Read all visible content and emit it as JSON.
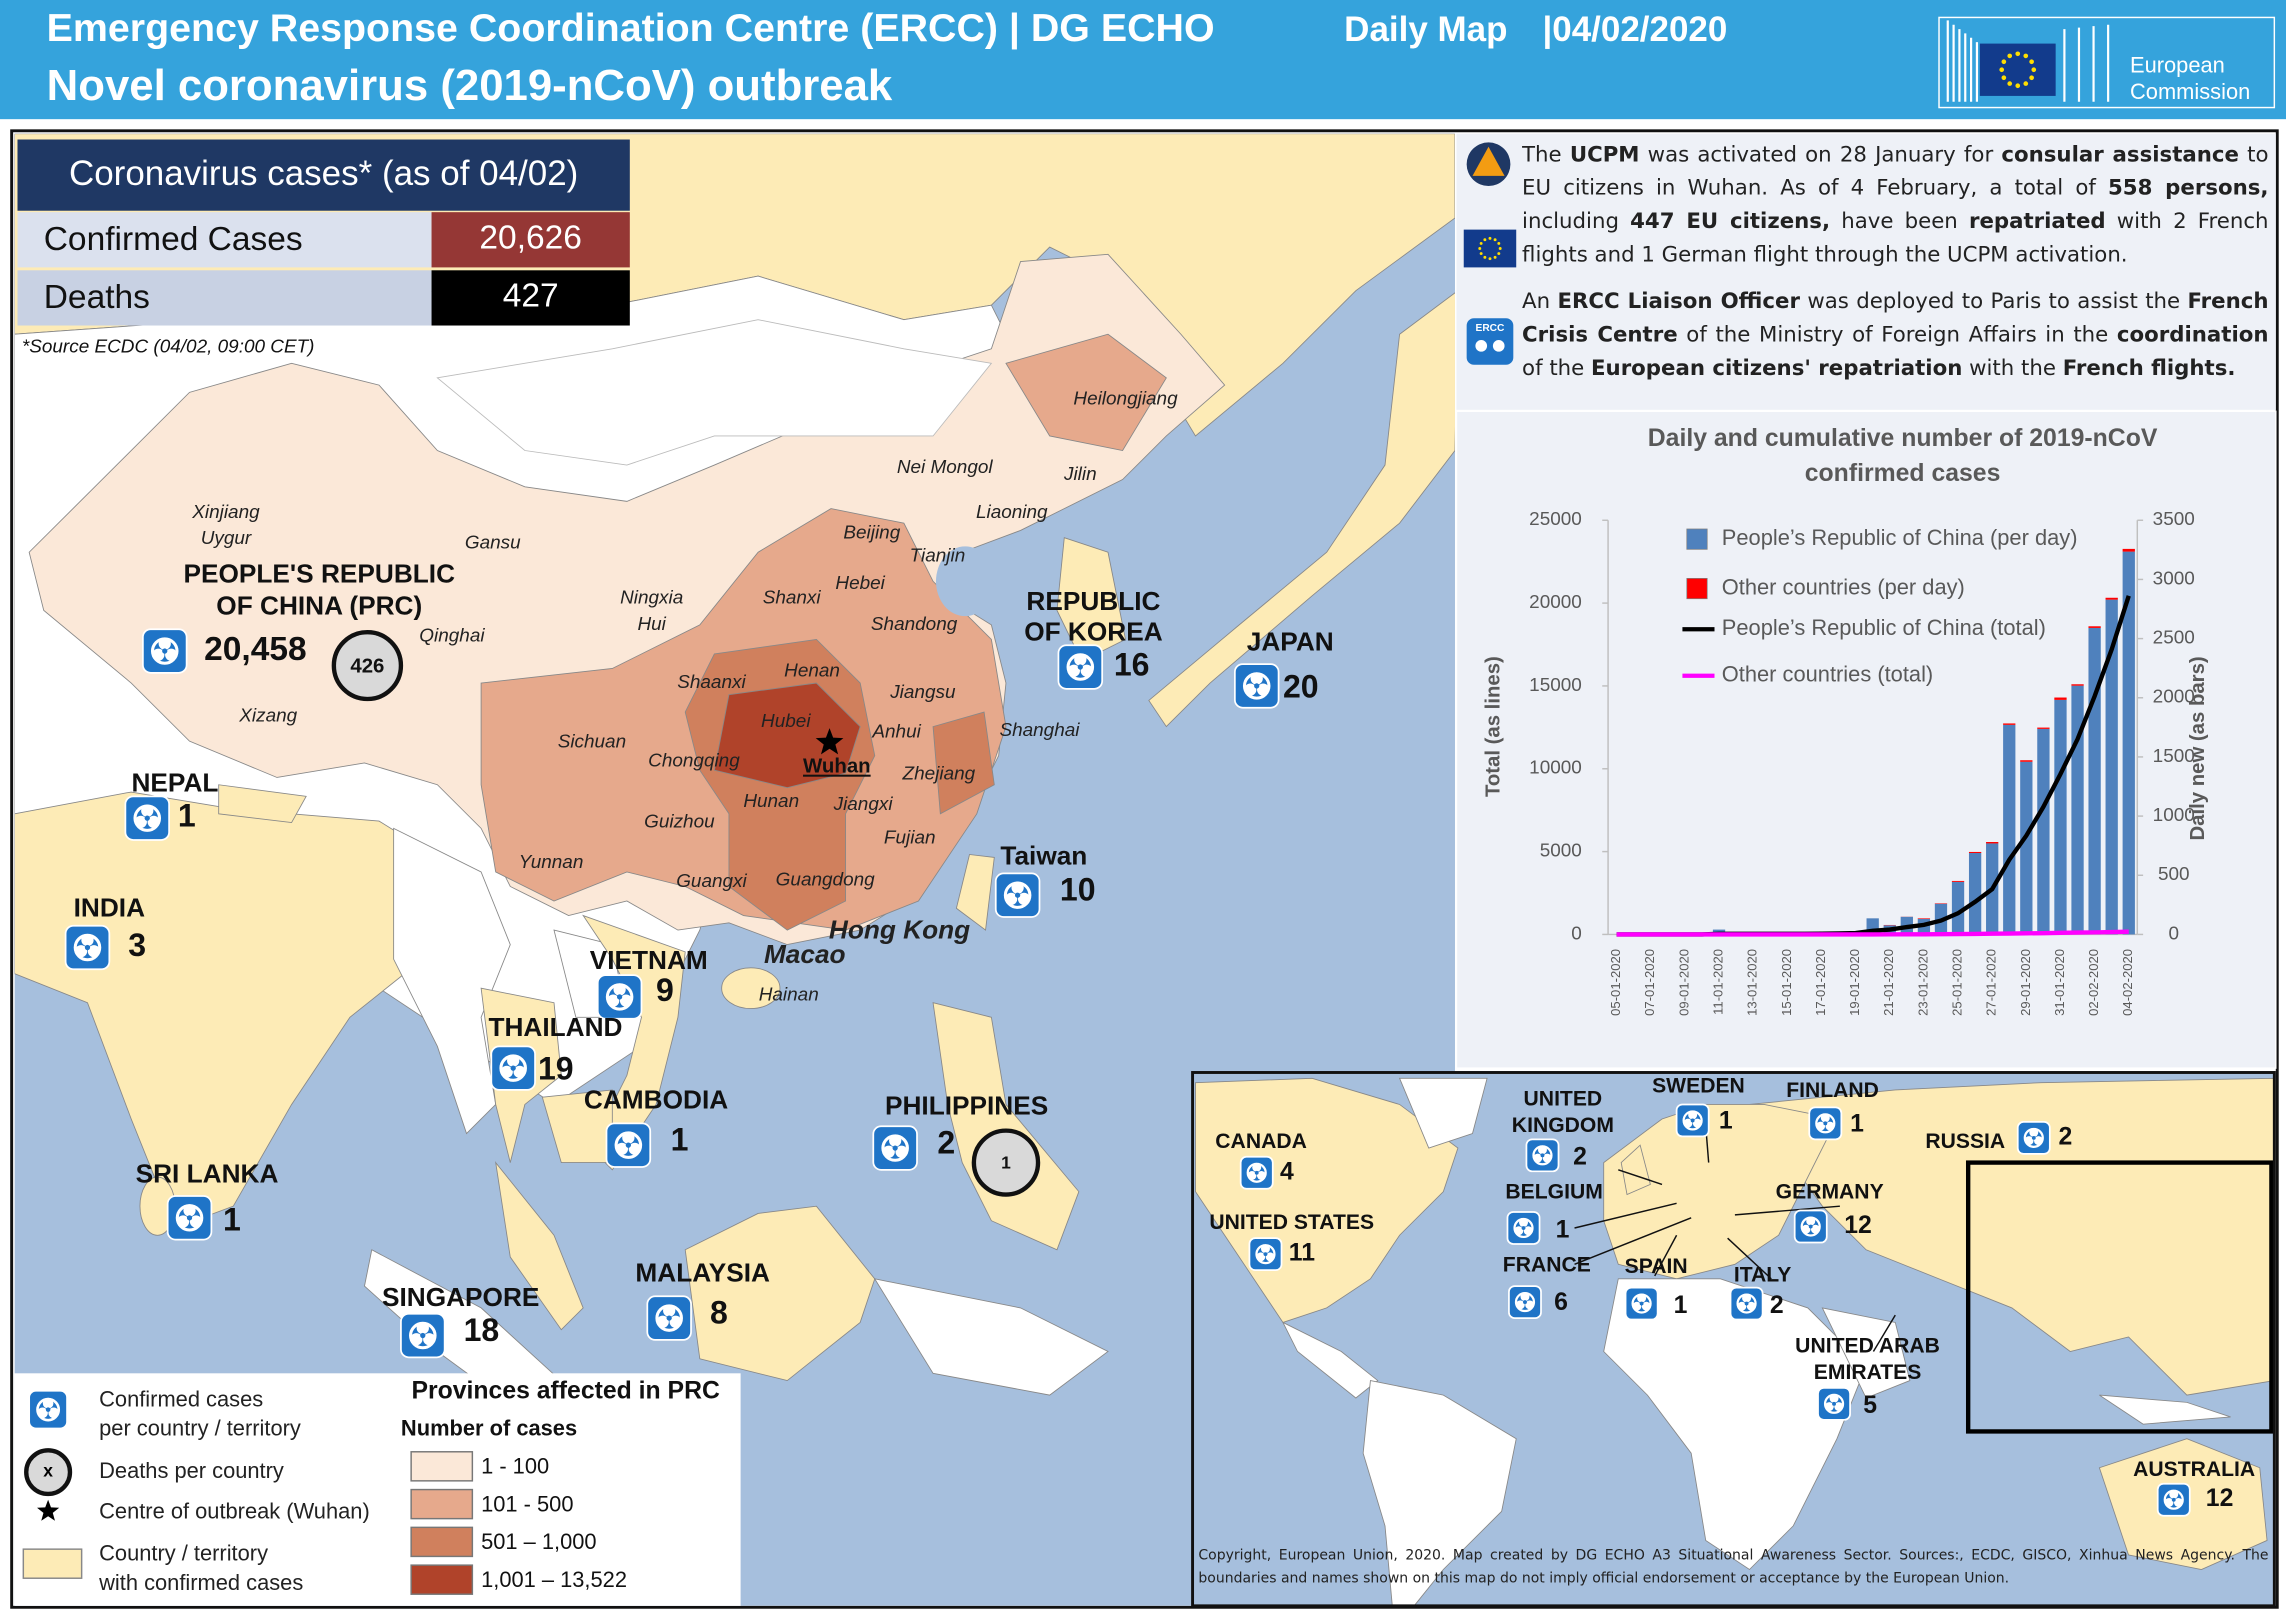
{
  "header": {
    "title": "Emergency Response Coordination Centre (ERCC) | DG ECHO",
    "map_type": "Daily Map",
    "date": "|04/02/2020",
    "subtitle": "Novel coronavirus (2019-nCoV) outbreak",
    "logo_text": [
      "European",
      "Commission"
    ]
  },
  "cases_table": {
    "title": "Coronavirus cases* (as of 04/02)",
    "rows": [
      [
        "Confirmed Cases",
        "20,626"
      ],
      [
        "Deaths",
        "427"
      ]
    ],
    "source": "*Source ECDC (04/02, 09:00 CET)"
  },
  "info": {
    "ercc_icon": "ERCC",
    "paragraphs": [
      [
        {
          "text": "The ",
          "bold": false
        },
        {
          "text": "UCPM",
          "bold": true
        },
        {
          "text": " was activated on 28 January for ",
          "bold": false
        },
        {
          "text": "consular assistance",
          "bold": true
        },
        {
          "text": " to EU citizens in Wuhan.  As of 4 February, a total of ",
          "bold": false
        },
        {
          "text": "558 persons,",
          "bold": true
        },
        {
          "text": " including ",
          "bold": false
        },
        {
          "text": "447 EU citizens,",
          "bold": true
        },
        {
          "text": " have been ",
          "bold": false
        },
        {
          "text": "repatriated",
          "bold": true
        },
        {
          "text": " with 2 French flights and 1 German flight through the UCPM activation.",
          "bold": false
        }
      ],
      [
        {
          "text": "An ",
          "bold": false
        },
        {
          "text": "ERCC Liaison Officer",
          "bold": true
        },
        {
          "text": " was deployed to Paris to assist the ",
          "bold": false
        },
        {
          "text": "French Crisis Centre",
          "bold": true
        },
        {
          "text": " of the Ministry of Foreign Affairs in the ",
          "bold": false
        },
        {
          "text": "coordination",
          "bold": true
        },
        {
          "text": " of the ",
          "bold": false
        },
        {
          "text": "European citizens'  repatriation",
          "bold": true
        },
        {
          "text": " with the ",
          "bold": false
        },
        {
          "text": "French flights.",
          "bold": true
        }
      ]
    ]
  },
  "map": {
    "provinces": [
      "Heilongjiang",
      "Nei Mongol",
      "Jilin",
      "Liaoning",
      "Xinjiang",
      "Uygur",
      "Gansu",
      "Beijing",
      "Tianjin",
      "Hebei",
      "Shanxi",
      "Ningxia",
      "Hui",
      "Qinghai",
      "Shandong",
      "Henan",
      "Shaanxi",
      "Jiangsu",
      "Hubei",
      "Anhui",
      "Shanghai",
      "Sichuan",
      "Chongqing",
      "Zhejiang",
      "Hunan",
      "Jiangxi",
      "Guizhou",
      "Fujian",
      "Yunnan",
      "Guangxi",
      "Guangdong",
      "Xizang",
      "Hainan"
    ],
    "wuhan": "Wuhan",
    "hong_kong": "Hong Kong",
    "macao": "Macao",
    "countries": [
      {
        "name": [
          "PEOPLE'S REPUBLIC",
          "OF CHINA (PRC)"
        ],
        "cases": 20458,
        "cases_label": "20,458",
        "deaths": 426
      },
      {
        "name": [
          "NEPAL"
        ],
        "cases": 1
      },
      {
        "name": [
          "INDIA"
        ],
        "cases": 3
      },
      {
        "name": [
          "REPUBLIC",
          "OF KOREA"
        ],
        "cases": 16
      },
      {
        "name": [
          "JAPAN"
        ],
        "cases": 20
      },
      {
        "name": [
          "Taiwan"
        ],
        "cases": 10
      },
      {
        "name": [
          "VIETNAM"
        ],
        "cases": 9
      },
      {
        "name": [
          "THAILAND"
        ],
        "cases": 19
      },
      {
        "name": [
          "CAMBODIA"
        ],
        "cases": 1
      },
      {
        "name": [
          "PHILIPPINES"
        ],
        "cases": 2,
        "deaths": 1
      },
      {
        "name": [
          "SRI LANKA"
        ],
        "cases": 1
      },
      {
        "name": [
          "SINGAPORE"
        ],
        "cases": 18
      },
      {
        "name": [
          "MALAYSIA"
        ],
        "cases": 8
      }
    ],
    "inset_countries": [
      {
        "name": [
          "CANADA"
        ],
        "cases": 4
      },
      {
        "name": [
          "UNITED  STATES"
        ],
        "cases": 11
      },
      {
        "name": [
          "UNITED",
          "KINGDOM"
        ],
        "cases": 2
      },
      {
        "name": [
          "SWEDEN"
        ],
        "cases": 1
      },
      {
        "name": [
          "FINLAND"
        ],
        "cases": 1
      },
      {
        "name": [
          "RUSSIA"
        ],
        "cases": 2
      },
      {
        "name": [
          "BELGIUM"
        ],
        "cases": 1
      },
      {
        "name": [
          "GERMANY"
        ],
        "cases": 12
      },
      {
        "name": [
          "FRANCE"
        ],
        "cases": 6
      },
      {
        "name": [
          "SPAIN"
        ],
        "cases": 1
      },
      {
        "name": [
          "ITALY"
        ],
        "cases": 2
      },
      {
        "name": [
          "UNITED ARAB",
          "EMIRATES"
        ],
        "cases": 5
      },
      {
        "name": [
          "AUSTRALIA"
        ],
        "cases": 12
      }
    ]
  },
  "legend": {
    "items": [
      [
        "Confirmed cases",
        "per country / territory"
      ],
      [
        "Deaths per country"
      ],
      [
        "Centre of outbreak (Wuhan)"
      ],
      [
        "Country / territory",
        "with confirmed cases"
      ]
    ],
    "death_symbol": "x",
    "provinces_title": "Provinces affected in PRC",
    "cases_title": "Number of cases",
    "classes": [
      {
        "label": "1 - 100",
        "color": "#fbe8d8"
      },
      {
        "label": "101 - 500",
        "color": "#e6a98c"
      },
      {
        "label": "501 – 1,000",
        "color": "#d0805d"
      },
      {
        "label": "1,001 – 13,522",
        "color": "#b0432a"
      }
    ]
  },
  "copyright": "Copyright, European Union, 2020. Map created by DG ECHO A3 Situational Awareness Sector.  Sources:, ECDC, GISCO, Xinhua News Agency. The boundaries and names shown on this map do not imply official endorsement or acceptance  by the European Union.",
  "chart_data": {
    "type": "bar",
    "title": "Daily and cumulative number of 2019-nCoV confirmed cases",
    "categories": [
      "05-01-2020",
      null,
      "07-01-2020",
      null,
      "09-01-2020",
      null,
      "11-01-2020",
      null,
      "13-01-2020",
      null,
      "15-01-2020",
      null,
      "17-01-2020",
      null,
      "19-01-2020",
      null,
      "21-01-2020",
      null,
      "23-01-2020",
      null,
      "25-01-2020",
      null,
      "27-01-2020",
      null,
      "29-01-2020",
      null,
      "31-01-2020",
      null,
      "02-02-2020",
      null,
      "04-02-2020"
    ],
    "ylabel": "Total (as lines)",
    "y2label": "Daily new (as bars)",
    "ylim": [
      0,
      25000
    ],
    "yticks": [
      0,
      5000,
      10000,
      15000,
      20000,
      25000
    ],
    "y2lim": [
      0,
      3500
    ],
    "y2ticks": [
      0,
      500,
      1000,
      1500,
      2000,
      2500,
      3000,
      3500
    ],
    "grid": false,
    "legend": "top-left",
    "series": [
      {
        "name": "People’s Republic of China (per day)",
        "type": "bar",
        "axis": "y2",
        "color": "#4f81bd",
        "values": [
          0,
          0,
          0,
          0,
          0,
          0,
          41,
          0,
          0,
          0,
          0,
          0,
          4,
          17,
          20,
          136,
          77,
          149,
          131,
          259,
          444,
          688,
          769,
          1771,
          1459,
          1737,
          1982,
          2102,
          2590,
          2829,
          3235
        ]
      },
      {
        "name": "Other countries (per day)",
        "type": "bar",
        "axis": "y2",
        "color": "#ff0000",
        "values": [
          0,
          0,
          0,
          0,
          0,
          0,
          0,
          0,
          0,
          0,
          0,
          0,
          0,
          0,
          0,
          0,
          3,
          1,
          5,
          4,
          8,
          9,
          12,
          12,
          13,
          11,
          20,
          12,
          14,
          16,
          23
        ]
      },
      {
        "name": "People’s Republic of China (total)",
        "type": "line",
        "color": "#000000",
        "values": [
          0,
          0,
          0,
          0,
          0,
          0,
          41,
          41,
          41,
          41,
          41,
          41,
          45,
          62,
          82,
          218,
          295,
          444,
          575,
          834,
          1278,
          1966,
          2735,
          4506,
          5965,
          7702,
          9684,
          11786,
          14376,
          17205,
          20440
        ]
      },
      {
        "name": "Other countries (total)",
        "type": "line",
        "color": "#ff00ff",
        "values": [
          0,
          0,
          0,
          0,
          0,
          0,
          0,
          0,
          0,
          0,
          0,
          0,
          0,
          0,
          0,
          0,
          3,
          4,
          9,
          13,
          21,
          30,
          42,
          54,
          67,
          78,
          98,
          110,
          124,
          140,
          163
        ]
      }
    ]
  }
}
